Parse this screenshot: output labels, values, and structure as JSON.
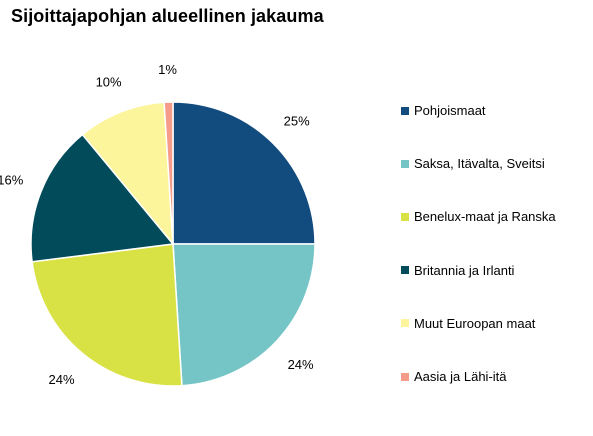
{
  "chart_data": {
    "type": "pie",
    "title": "Sijoittajapohjan alueellinen jakauma",
    "slices": [
      {
        "name": "Pohjoismaat",
        "value": 25,
        "label": "25%",
        "color": "#124b7e"
      },
      {
        "name": "Saksa, Itävalta, Sveitsi",
        "value": 24,
        "label": "24%",
        "color": "#76c5c6"
      },
      {
        "name": "Benelux-maat ja Ranska",
        "value": 24,
        "label": "24%",
        "color": "#d9e245"
      },
      {
        "name": "Britannia ja Irlanti",
        "value": 16,
        "label": "16%",
        "color": "#014b5a"
      },
      {
        "name": "Muut Euroopan maat",
        "value": 10,
        "label": "10%",
        "color": "#fcf59b"
      },
      {
        "name": "Aasia ja Lähi-itä",
        "value": 1,
        "label": "1%",
        "color": "#f59b8a"
      }
    ],
    "legend_position": "right"
  }
}
